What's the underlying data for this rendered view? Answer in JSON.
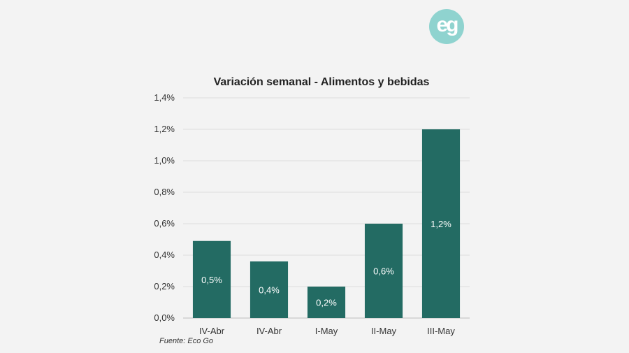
{
  "logo": {
    "text": "eg"
  },
  "chart_data": {
    "type": "bar",
    "title": "Variación semanal - Alimentos y bebidas",
    "xlabel": "",
    "ylabel": "",
    "categories": [
      "IV-Abr",
      "IV-Abr",
      "I-May",
      "II-May",
      "III-May"
    ],
    "values": [
      0.0049,
      0.0036,
      0.002,
      0.006,
      0.012
    ],
    "data_labels": [
      "0,5%",
      "0,4%",
      "0,2%",
      "0,6%",
      "1,2%"
    ],
    "ylim": [
      0,
      0.014
    ],
    "y_ticks": [
      0,
      0.002,
      0.004,
      0.006,
      0.008,
      0.01,
      0.012,
      0.014
    ],
    "y_tick_labels": [
      "0,0%",
      "0,2%",
      "0,4%",
      "0,6%",
      "0,8%",
      "1,0%",
      "1,2%",
      "1,4%"
    ],
    "grid": true,
    "legend": "none",
    "colors": {
      "bar": "#236b63",
      "grid": "#dcdcdc",
      "axis": "#bdbdbd",
      "background": "#f3f3f3"
    }
  },
  "source": "Fuente: Eco Go"
}
